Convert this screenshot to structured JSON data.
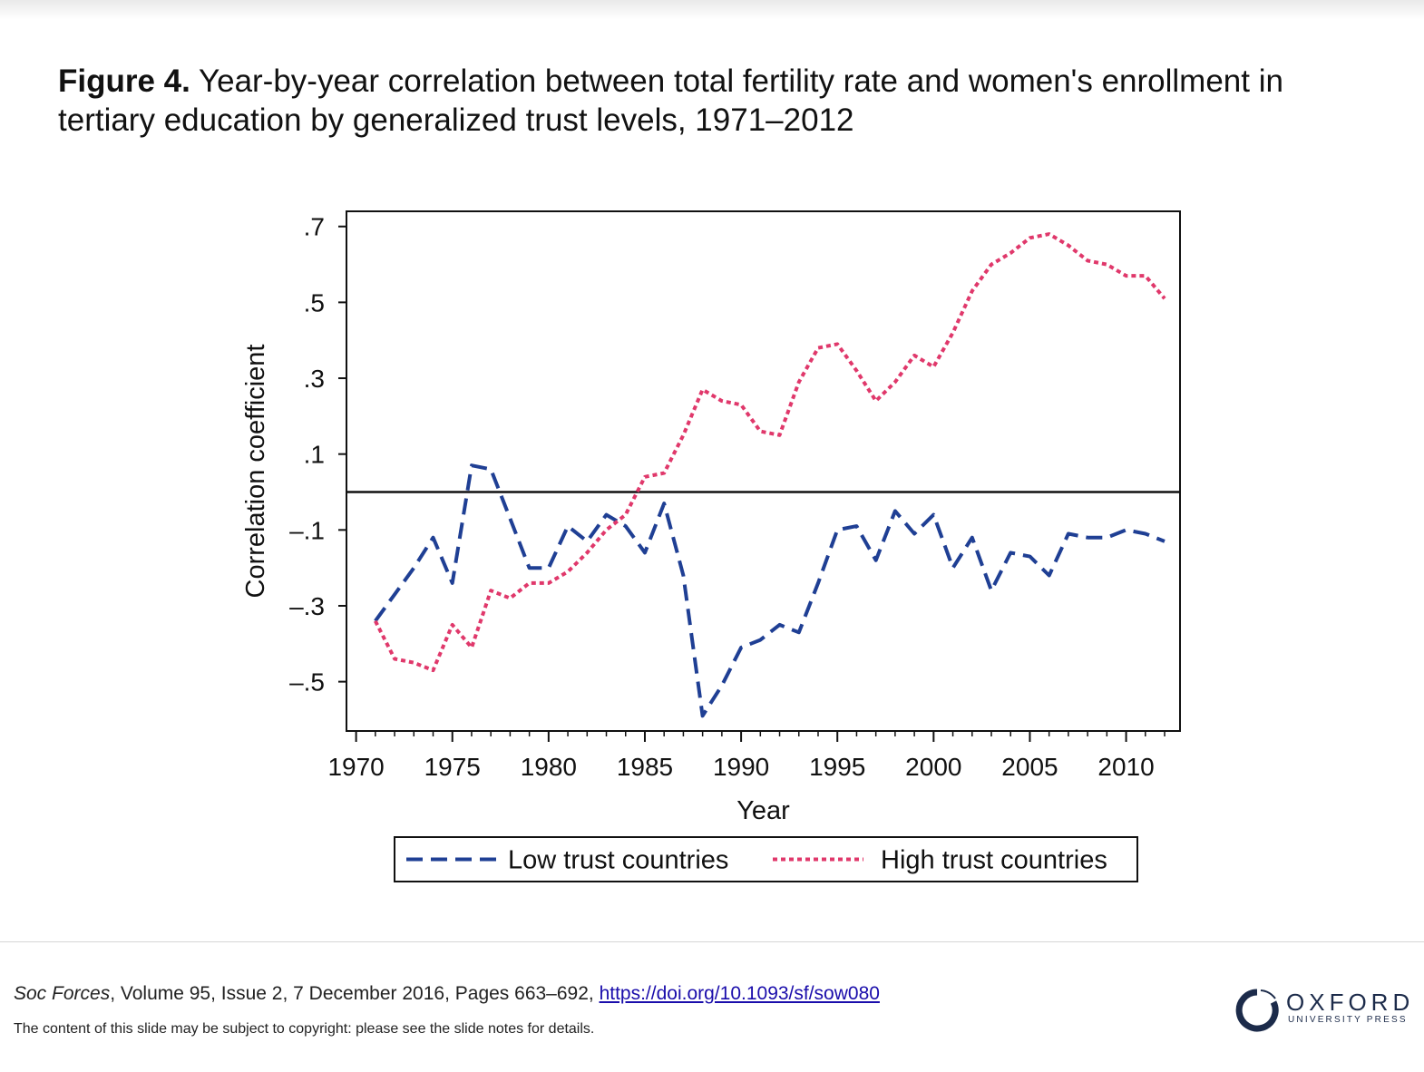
{
  "caption": {
    "label": "Figure 4.",
    "text": " Year-by-year correlation between total fertility rate and women's enrollment in tertiary education by generalized trust levels, 1971–2012"
  },
  "chart_data": {
    "type": "line",
    "xlabel": "Year",
    "ylabel": "Correlation coefficient",
    "xlim": [
      1969.5,
      2012.8
    ],
    "ylim": [
      -0.63,
      0.74
    ],
    "xticks": [
      1970,
      1975,
      1980,
      1985,
      1990,
      1995,
      2000,
      2005,
      2010
    ],
    "xtick_labels": [
      "1970",
      "1975",
      "1980",
      "1985",
      "1990",
      "1995",
      "2000",
      "2005",
      "2010"
    ],
    "yticks": [
      0.7,
      0.5,
      0.3,
      0.1,
      -0.1,
      -0.3,
      -0.5
    ],
    "ytick_labels": [
      ".7",
      ".5",
      ".3",
      ".1",
      "–.1",
      "–.3",
      "–.5"
    ],
    "reference_line_y": 0,
    "legend_position": "bottom",
    "x": [
      1971,
      1972,
      1973,
      1974,
      1975,
      1976,
      1977,
      1978,
      1979,
      1980,
      1981,
      1982,
      1983,
      1984,
      1985,
      1986,
      1987,
      1988,
      1989,
      1990,
      1991,
      1992,
      1993,
      1994,
      1995,
      1996,
      1997,
      1998,
      1999,
      2000,
      2001,
      2002,
      2003,
      2004,
      2005,
      2006,
      2007,
      2008,
      2009,
      2010,
      2011,
      2012
    ],
    "series": [
      {
        "name": "Low trust countries",
        "color": "#1f3f94",
        "dash": "dashed",
        "values": [
          -0.34,
          -0.27,
          -0.2,
          -0.12,
          -0.24,
          0.07,
          0.06,
          -0.07,
          -0.2,
          -0.2,
          -0.09,
          -0.13,
          -0.06,
          -0.09,
          -0.16,
          -0.03,
          -0.22,
          -0.59,
          -0.51,
          -0.41,
          -0.39,
          -0.35,
          -0.37,
          -0.24,
          -0.1,
          -0.09,
          -0.18,
          -0.05,
          -0.11,
          -0.06,
          -0.2,
          -0.12,
          -0.26,
          -0.16,
          -0.17,
          -0.22,
          -0.11,
          -0.12,
          -0.12,
          -0.1,
          -0.11,
          -0.13
        ]
      },
      {
        "name": "High trust countries",
        "color": "#e0386b",
        "dash": "dotted",
        "values": [
          -0.34,
          -0.44,
          -0.45,
          -0.47,
          -0.35,
          -0.41,
          -0.26,
          -0.28,
          -0.24,
          -0.24,
          -0.21,
          -0.16,
          -0.1,
          -0.06,
          0.04,
          0.05,
          0.15,
          0.27,
          0.24,
          0.23,
          0.16,
          0.15,
          0.29,
          0.38,
          0.39,
          0.32,
          0.24,
          0.29,
          0.36,
          0.33,
          0.42,
          0.53,
          0.6,
          0.63,
          0.67,
          0.68,
          0.65,
          0.61,
          0.6,
          0.57,
          0.57,
          0.51
        ]
      }
    ]
  },
  "footer": {
    "journal": "Soc Forces",
    "details": ", Volume 95, Issue 2, 7 December 2016, Pages 663–692, ",
    "doi_link": "https://doi.org/10.1093/sf/sow080",
    "notice": "The content of this slide may be subject to copyright: please see the slide notes for details.",
    "logo_word": "OXFORD",
    "logo_sub": "UNIVERSITY PRESS"
  }
}
